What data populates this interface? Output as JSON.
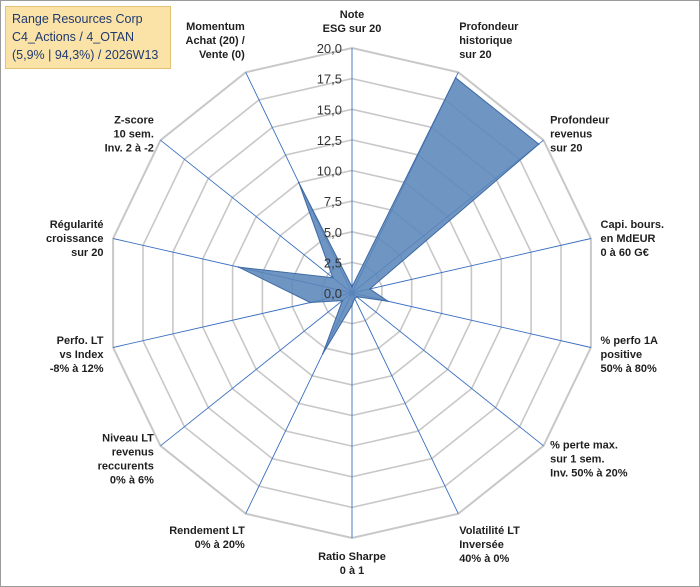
{
  "title_box": {
    "line1": "Range Resources Corp",
    "line2": "C4_Actions / 4_OTAN",
    "line3": "(5,9% | 94,3%) / 2026W13"
  },
  "chart_data": {
    "type": "radar",
    "rmin": 0,
    "rmax": 20,
    "tick_labels": [
      "0,0",
      "2,5",
      "5,0",
      "7,5",
      "10,0",
      "12,5",
      "15,0",
      "17,5",
      "20,0"
    ],
    "grid": true,
    "colors": {
      "fill": "#5b86bb",
      "stroke": "#3d6aa3",
      "grid": "#c8c8c8",
      "spoke": "#3a6fc0"
    },
    "categories": [
      [
        "Note",
        "ESG sur 20"
      ],
      [
        "Profondeur",
        "historique",
        "sur 20"
      ],
      [
        "Profondeur",
        "revenus",
        "sur 20"
      ],
      [
        "Capi. bours.",
        "en MdEUR",
        "0 à 60 G€"
      ],
      [
        "% perfo 1A",
        "positive",
        "50% à 80%"
      ],
      [
        "% perte max.",
        "sur 1 sem.",
        "Inv. 50% à 20%"
      ],
      [
        "Volatilité LT",
        "Inversée",
        "40% à 0%"
      ],
      [
        "Ratio Sharpe",
        "0 à 1"
      ],
      [
        "Rendement LT",
        "0% à 20%"
      ],
      [
        "Niveau LT",
        "revenus",
        "reccurents",
        "0% à 6%"
      ],
      [
        "Perfo. LT",
        "vs Index",
        "-8% à 12%"
      ],
      [
        "Régularité",
        "croissance",
        "sur 20"
      ],
      [
        "Z-score",
        "10 sem.",
        "Inv. 2 à -2"
      ],
      [
        "Momentum",
        "Achat (20) /",
        "Vente (0)"
      ]
    ],
    "values": [
      0.5,
      19.5,
      19.5,
      1.5,
      3.0,
      0.5,
      0.5,
      1.0,
      5.5,
      1.0,
      3.5,
      9.5,
      2.0,
      10.0
    ]
  }
}
